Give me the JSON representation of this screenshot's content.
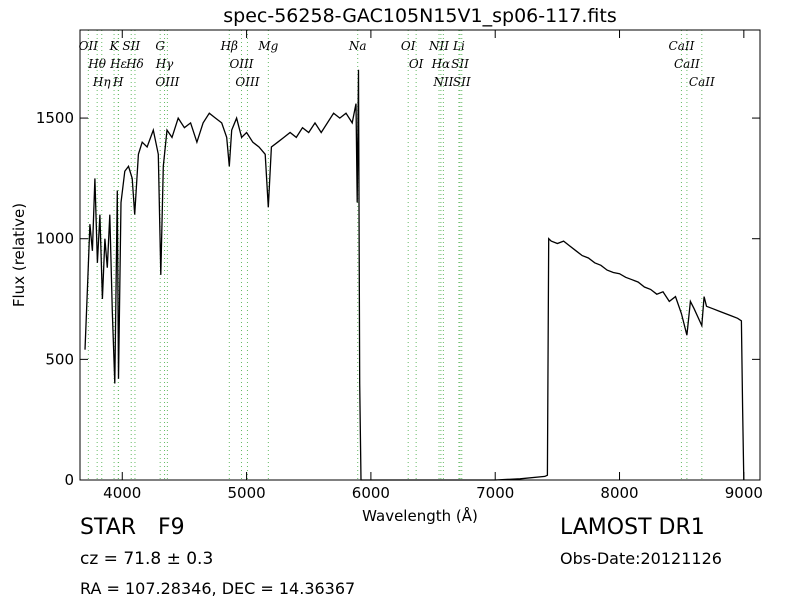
{
  "chart_data": {
    "type": "line",
    "title": "spec-56258-GAC105N15V1_sp06-117.fits",
    "x_label": "Wavelength (Å)",
    "y_label": "Flux (relative)",
    "xlim": [
      3660,
      9130
    ],
    "ylim": [
      0,
      1865
    ],
    "xticks": [
      4000,
      5000,
      6000,
      7000,
      8000,
      9000
    ],
    "yticks": [
      0,
      500,
      1000,
      1500
    ],
    "color": "#000000",
    "line_color": "#66bb66",
    "x": [
      3700,
      3720,
      3740,
      3760,
      3780,
      3800,
      3820,
      3840,
      3860,
      3880,
      3900,
      3920,
      3940,
      3960,
      3970,
      3990,
      4020,
      4050,
      4080,
      4100,
      4130,
      4160,
      4200,
      4250,
      4290,
      4310,
      4330,
      4360,
      4400,
      4450,
      4500,
      4550,
      4600,
      4650,
      4700,
      4750,
      4800,
      4840,
      4861,
      4880,
      4920,
      4960,
      5000,
      5050,
      5100,
      5150,
      5175,
      5200,
      5250,
      5300,
      5350,
      5400,
      5450,
      5500,
      5550,
      5600,
      5650,
      5700,
      5750,
      5800,
      5850,
      5880,
      5890,
      5900,
      5910,
      5920,
      6000,
      6500,
      7000,
      7200,
      7400,
      7420,
      7430,
      7450,
      7500,
      7550,
      7600,
      7650,
      7700,
      7750,
      7800,
      7850,
      7900,
      7950,
      8000,
      8050,
      8100,
      8150,
      8200,
      8250,
      8300,
      8350,
      8400,
      8450,
      8498,
      8542,
      8570,
      8600,
      8662,
      8680,
      8700,
      8750,
      8800,
      8850,
      8900,
      8950,
      8980,
      8990,
      9000
    ],
    "values": [
      540,
      800,
      1060,
      950,
      1250,
      900,
      1100,
      750,
      1000,
      880,
      1100,
      700,
      400,
      1200,
      420,
      1150,
      1280,
      1300,
      1250,
      1100,
      1350,
      1400,
      1380,
      1450,
      1350,
      850,
      1300,
      1450,
      1420,
      1500,
      1460,
      1480,
      1400,
      1480,
      1520,
      1500,
      1480,
      1420,
      1300,
      1450,
      1500,
      1420,
      1440,
      1400,
      1380,
      1350,
      1130,
      1380,
      1400,
      1420,
      1440,
      1420,
      1460,
      1440,
      1480,
      1440,
      1480,
      1520,
      1500,
      1520,
      1480,
      1560,
      1150,
      1700,
      400,
      0,
      0,
      0,
      0,
      5,
      15,
      20,
      1000,
      990,
      980,
      990,
      970,
      950,
      930,
      920,
      900,
      890,
      870,
      860,
      855,
      840,
      830,
      820,
      800,
      790,
      770,
      780,
      740,
      760,
      690,
      600,
      740,
      710,
      640,
      760,
      720,
      710,
      700,
      690,
      680,
      670,
      660,
      300,
      0
    ],
    "lines": [
      {
        "label": "OII",
        "wavelength": 3727
      },
      {
        "label": "Hθ",
        "wavelength": 3798
      },
      {
        "label": "Hη",
        "wavelength": 3835
      },
      {
        "label": "K",
        "wavelength": 3934
      },
      {
        "label": "Hε",
        "wavelength": 3970
      },
      {
        "label": "H",
        "wavelength": 3968
      },
      {
        "label": "SII",
        "wavelength": 4072
      },
      {
        "label": "Hδ",
        "wavelength": 4102
      },
      {
        "label": "G",
        "wavelength": 4305
      },
      {
        "label": "Hγ",
        "wavelength": 4340
      },
      {
        "label": "OIII",
        "wavelength": 4363
      },
      {
        "label": "Hβ",
        "wavelength": 4861
      },
      {
        "label": "OIII",
        "wavelength": 4959
      },
      {
        "label": "OIII",
        "wavelength": 5007
      },
      {
        "label": "Mg",
        "wavelength": 5175
      },
      {
        "label": "Na",
        "wavelength": 5894
      },
      {
        "label": "OI",
        "wavelength": 6300
      },
      {
        "label": "OI",
        "wavelength": 6364
      },
      {
        "label": "NII",
        "wavelength": 6548
      },
      {
        "label": "Hα",
        "wavelength": 6563
      },
      {
        "label": "NII",
        "wavelength": 6583
      },
      {
        "label": "Li",
        "wavelength": 6708
      },
      {
        "label": "SII",
        "wavelength": 6717
      },
      {
        "label": "SII",
        "wavelength": 6731
      },
      {
        "label": "CaII",
        "wavelength": 8498
      },
      {
        "label": "CaII",
        "wavelength": 8542
      },
      {
        "label": "CaII",
        "wavelength": 8662
      }
    ],
    "info": {
      "class": "STAR",
      "subclass": "F9",
      "cz": "cz = 71.8 ± 0.3",
      "coords": "RA = 107.28346, DEC = 14.36367",
      "survey": "LAMOST DR1",
      "date": "Obs-Date:20121126"
    }
  }
}
